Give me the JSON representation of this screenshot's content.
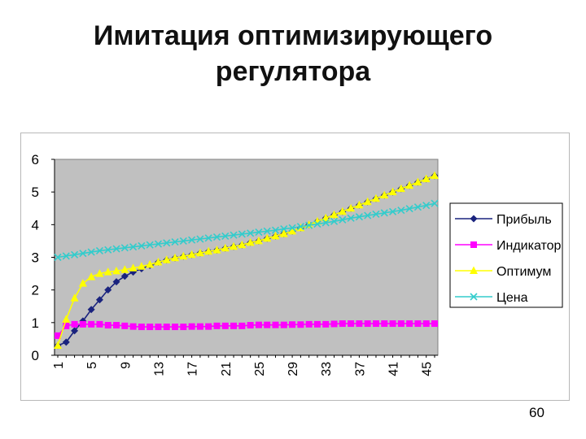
{
  "slide": {
    "title_line1": "Имитация оптимизирующего",
    "title_line2": "регулятора",
    "page_number": "60"
  },
  "chart_data": {
    "type": "line",
    "title": "",
    "xlabel": "",
    "ylabel": "",
    "ylim": [
      0,
      6
    ],
    "yticks": [
      0,
      1,
      2,
      3,
      4,
      5,
      6
    ],
    "x": [
      1,
      2,
      3,
      4,
      5,
      6,
      7,
      8,
      9,
      10,
      11,
      12,
      13,
      14,
      15,
      16,
      17,
      18,
      19,
      20,
      21,
      22,
      23,
      24,
      25,
      26,
      27,
      28,
      29,
      30,
      31,
      32,
      33,
      34,
      35,
      36,
      37,
      38,
      39,
      40,
      41,
      42,
      43,
      44,
      45,
      46
    ],
    "x_tick_labels": [
      "1",
      "5",
      "9",
      "13",
      "17",
      "21",
      "25",
      "29",
      "33",
      "37",
      "41",
      "45"
    ],
    "grid": false,
    "plot_background": "#c0c0c0",
    "legend_position": "right",
    "series": [
      {
        "name": "Прибыль",
        "color": "#1a237e",
        "marker": "diamond",
        "values": [
          0.3,
          0.4,
          0.75,
          1.05,
          1.4,
          1.7,
          2.0,
          2.25,
          2.42,
          2.55,
          2.65,
          2.75,
          2.85,
          2.92,
          2.98,
          3.03,
          3.08,
          3.13,
          3.18,
          3.22,
          3.28,
          3.33,
          3.38,
          3.45,
          3.5,
          3.58,
          3.65,
          3.72,
          3.8,
          3.9,
          4.0,
          4.1,
          4.2,
          4.3,
          4.4,
          4.5,
          4.6,
          4.7,
          4.8,
          4.9,
          5.0,
          5.1,
          5.2,
          5.3,
          5.4,
          5.5
        ]
      },
      {
        "name": "Индикатор",
        "color": "#ff00ff",
        "marker": "square",
        "values": [
          0.6,
          0.9,
          0.95,
          0.95,
          0.95,
          0.95,
          0.92,
          0.92,
          0.9,
          0.88,
          0.87,
          0.87,
          0.87,
          0.87,
          0.87,
          0.87,
          0.88,
          0.88,
          0.88,
          0.9,
          0.9,
          0.9,
          0.9,
          0.92,
          0.93,
          0.93,
          0.93,
          0.93,
          0.94,
          0.94,
          0.95,
          0.95,
          0.95,
          0.96,
          0.97,
          0.97,
          0.97,
          0.97,
          0.97,
          0.97,
          0.97,
          0.97,
          0.97,
          0.97,
          0.97,
          0.97
        ]
      },
      {
        "name": "Оптимум",
        "color": "#ffff00",
        "marker": "triangle",
        "values": [
          0.3,
          1.1,
          1.75,
          2.2,
          2.4,
          2.5,
          2.55,
          2.58,
          2.62,
          2.67,
          2.72,
          2.78,
          2.85,
          2.92,
          2.98,
          3.03,
          3.08,
          3.13,
          3.18,
          3.22,
          3.28,
          3.33,
          3.38,
          3.45,
          3.5,
          3.58,
          3.65,
          3.72,
          3.8,
          3.9,
          4.0,
          4.1,
          4.2,
          4.3,
          4.4,
          4.5,
          4.6,
          4.7,
          4.8,
          4.9,
          5.0,
          5.1,
          5.2,
          5.3,
          5.4,
          5.5
        ]
      },
      {
        "name": "Цена",
        "color": "#33cccc",
        "marker": "x",
        "values": [
          3.0,
          3.04,
          3.08,
          3.12,
          3.16,
          3.2,
          3.23,
          3.26,
          3.29,
          3.32,
          3.35,
          3.38,
          3.41,
          3.44,
          3.47,
          3.5,
          3.53,
          3.56,
          3.59,
          3.62,
          3.65,
          3.68,
          3.71,
          3.74,
          3.77,
          3.8,
          3.83,
          3.87,
          3.9,
          3.94,
          3.98,
          4.02,
          4.06,
          4.1,
          4.15,
          4.2,
          4.24,
          4.28,
          4.32,
          4.36,
          4.4,
          4.44,
          4.49,
          4.54,
          4.59,
          4.65
        ]
      }
    ]
  }
}
